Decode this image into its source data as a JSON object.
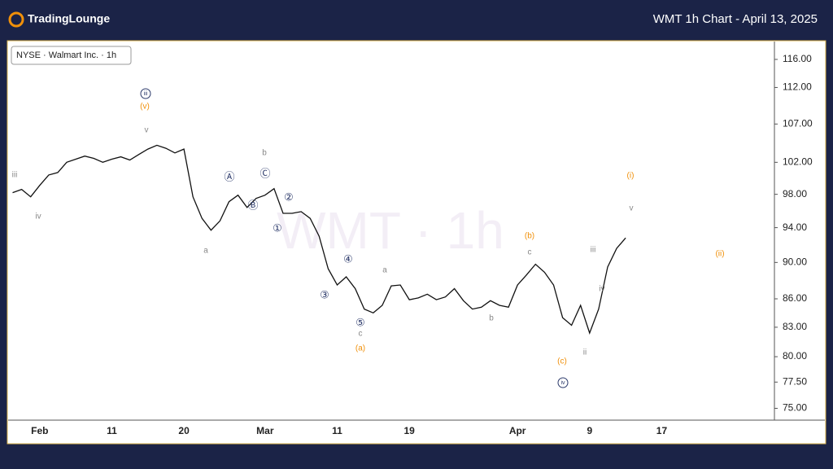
{
  "header": {
    "brand": "TradingLounge",
    "title": "WMT 1h Chart - April 13, 2025"
  },
  "chart_data": {
    "type": "line",
    "legend_box": "NYSE · Walmart Inc. · 1h",
    "watermark": "WMT · 1h",
    "color": "#111111",
    "log_scale": true,
    "grid": false,
    "categories": [
      null,
      null,
      null,
      "Feb",
      null,
      null,
      null,
      null,
      null,
      null,
      null,
      "11",
      null,
      null,
      null,
      null,
      null,
      null,
      null,
      "20",
      null,
      null,
      null,
      null,
      null,
      null,
      null,
      null,
      "Mar",
      null,
      null,
      null,
      null,
      null,
      null,
      null,
      "11",
      null,
      null,
      null,
      null,
      null,
      null,
      null,
      "19",
      null,
      null,
      null,
      null,
      null,
      null,
      null,
      null,
      null,
      null,
      null,
      "Apr",
      null,
      null,
      null,
      null,
      null,
      null,
      null,
      "9",
      null,
      null,
      null,
      null,
      null,
      null,
      null,
      "17",
      null,
      null,
      null,
      null,
      null,
      null,
      null,
      null,
      null,
      null,
      null,
      null
    ],
    "values": [
      98.2,
      98.6,
      97.7,
      99.1,
      100.4,
      100.7,
      102.0,
      102.4,
      102.8,
      102.5,
      102.0,
      102.4,
      102.7,
      102.3,
      103.0,
      103.7,
      104.2,
      103.8,
      103.2,
      103.7,
      97.7,
      95.1,
      93.7,
      94.8,
      97.1,
      97.9,
      96.4,
      97.5,
      97.9,
      98.7,
      95.7,
      95.7,
      95.9,
      95.1,
      93.0,
      89.3,
      87.5,
      88.4,
      87.1,
      84.9,
      84.5,
      85.3,
      87.4,
      87.5,
      85.9,
      86.1,
      86.5,
      85.9,
      86.2,
      87.1,
      85.8,
      84.9,
      85.1,
      85.8,
      85.3,
      85.1,
      87.5,
      88.6,
      89.8,
      88.9,
      87.5,
      84.0,
      83.2,
      85.3,
      82.4,
      84.9,
      89.5,
      91.6,
      92.8,
      null,
      null,
      null,
      null,
      null,
      null,
      null,
      null,
      null,
      null,
      null,
      null,
      null,
      null,
      null,
      null
    ],
    "ylim": [
      73.9,
      118.5
    ],
    "yticks": [
      {
        "value": 75,
        "label": "75.00"
      },
      {
        "value": 77.5,
        "label": "77.50"
      },
      {
        "value": 80,
        "label": "80.00"
      },
      {
        "value": 83,
        "label": "83.00"
      },
      {
        "value": 86,
        "label": "86.00"
      },
      {
        "value": 90,
        "label": "90.00"
      },
      {
        "value": 94,
        "label": "94.00"
      },
      {
        "value": 98,
        "label": "98.00"
      },
      {
        "value": 102,
        "label": "102.00"
      },
      {
        "value": 107,
        "label": "107.00"
      },
      {
        "value": 112,
        "label": "112.00"
      },
      {
        "value": 116,
        "label": "116.00"
      }
    ],
    "annotations": [
      "(v)",
      "iii",
      "v",
      "iii",
      "iv",
      "b",
      "Ⓒ",
      "Ⓐ",
      "Ⓑ",
      "②",
      "①",
      "a",
      "④",
      "③",
      "⑤",
      "c",
      "(a)",
      "a",
      "b",
      "c",
      "(b)",
      "(c)",
      "iv",
      "ii",
      "iii",
      "iv",
      "v",
      "(i)",
      "(ii)"
    ]
  }
}
